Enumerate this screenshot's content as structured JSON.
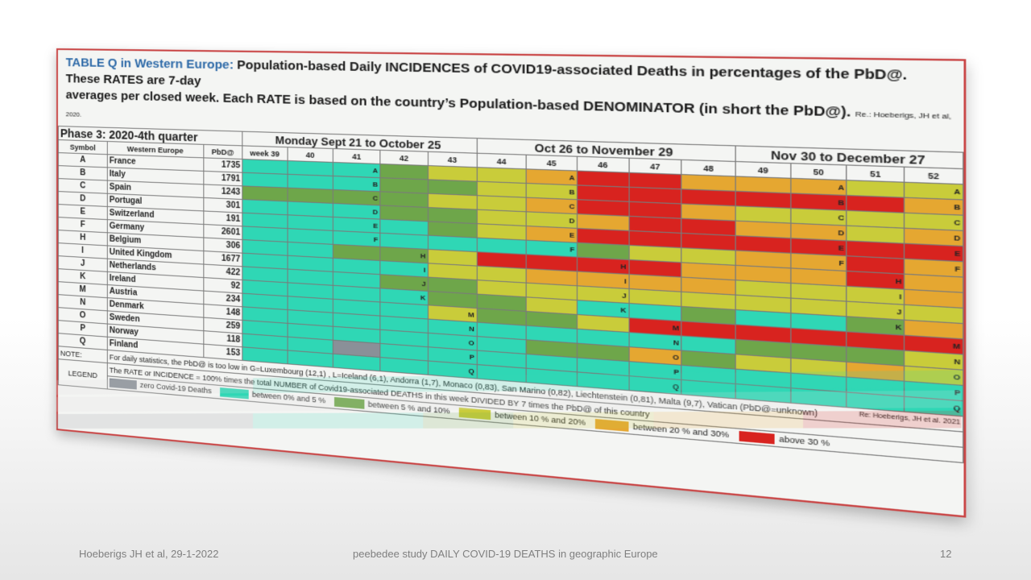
{
  "title": {
    "head": "TABLE Q in Western Europe:",
    "line1_rest": "Population-based Daily INCIDENCES of COVID19-associated Deaths in percentages of the PbD@. These RATES are 7-day",
    "line2": "averages per closed week. Each RATE is based on the country’s Population-based DENOMINATOR (in short the PbD@).",
    "ref": "Re.: Hoeberigs, JH et al, 2020."
  },
  "table": {
    "phase_label": "Phase 3:",
    "phase_quarter": "2020-4th quarter",
    "periods": [
      "Monday Sept 21 to October 25",
      "Oct 26 to November 29",
      "Nov 30 to December 27"
    ],
    "headers": {
      "symbol": "Symbol",
      "region": "Western Europe",
      "pbd": "PbD@"
    },
    "weeks": [
      "week 39",
      "40",
      "41",
      "42",
      "43",
      "44",
      "45",
      "46",
      "47",
      "48",
      "49",
      "50",
      "51",
      "52"
    ],
    "rows": [
      {
        "symbol": "A",
        "country": "France",
        "pbd": "1735",
        "cells": [
          "t",
          "t",
          "t:A",
          "g",
          "y",
          "y",
          "o:A",
          "r",
          "r",
          "o",
          "o",
          "o:A",
          "y",
          "y:A"
        ]
      },
      {
        "symbol": "B",
        "country": "Italy",
        "pbd": "1791",
        "cells": [
          "t",
          "t",
          "t:B",
          "g",
          "g",
          "y",
          "y:B",
          "r",
          "r",
          "r",
          "r",
          "r:B",
          "r",
          "o:B"
        ]
      },
      {
        "symbol": "C",
        "country": "Spain",
        "pbd": "1243",
        "cells": [
          "g",
          "g",
          "g:C",
          "g",
          "y",
          "y",
          "o:C",
          "r",
          "r",
          "o",
          "y",
          "y:C",
          "y",
          "y:C"
        ]
      },
      {
        "symbol": "D",
        "country": "Portugal",
        "pbd": "301",
        "cells": [
          "t",
          "t",
          "t:D",
          "g",
          "g",
          "y",
          "y:D",
          "o",
          "r",
          "r",
          "o",
          "o:D",
          "y",
          "o:D"
        ]
      },
      {
        "symbol": "E",
        "country": "Switzerland",
        "pbd": "191",
        "cells": [
          "t",
          "t",
          "t:E",
          "t",
          "g",
          "y",
          "o:E",
          "r",
          "r",
          "r",
          "r",
          "r:E",
          "r",
          "r:E"
        ]
      },
      {
        "symbol": "F",
        "country": "Germany",
        "pbd": "2601",
        "cells": [
          "t",
          "t",
          "t:F",
          "t",
          "t",
          "t",
          "t:F",
          "g",
          "y",
          "y",
          "o",
          "o:F",
          "r",
          "o:F"
        ]
      },
      {
        "symbol": "H",
        "country": "Belgium",
        "pbd": "306",
        "cells": [
          "t",
          "t",
          "g",
          "g:H",
          "y",
          "r",
          "r",
          "r:H",
          "r",
          "o",
          "o",
          "o",
          "r:H",
          "o"
        ]
      },
      {
        "symbol": "I",
        "country": "United Kingdom",
        "pbd": "1677",
        "cells": [
          "t",
          "t",
          "t",
          "t:I",
          "y",
          "y",
          "o",
          "o:I",
          "o",
          "o",
          "y",
          "y",
          "y:I",
          "o"
        ]
      },
      {
        "symbol": "J",
        "country": "Netherlands",
        "pbd": "422",
        "cells": [
          "t",
          "t",
          "t",
          "g:J",
          "g",
          "y",
          "y",
          "y:J",
          "y",
          "y",
          "y",
          "y",
          "y:J",
          "y"
        ]
      },
      {
        "symbol": "K",
        "country": "Ireland",
        "pbd": "92",
        "cells": [
          "t",
          "t",
          "t",
          "t:K",
          "g",
          "g",
          "y",
          "t:K",
          "t",
          "g",
          "t",
          "t",
          "g:K",
          "o"
        ]
      },
      {
        "symbol": "M",
        "country": "Austria",
        "pbd": "234",
        "cells": [
          "t",
          "t",
          "t",
          "t",
          "y:M",
          "g",
          "g",
          "y",
          "r:M",
          "r",
          "r",
          "r",
          "r",
          "r:M"
        ]
      },
      {
        "symbol": "N",
        "country": "Denmark",
        "pbd": "148",
        "cells": [
          "t",
          "t",
          "t",
          "t",
          "t:N",
          "t",
          "t",
          "t",
          "t:N",
          "t",
          "g",
          "g",
          "g",
          "y:N"
        ]
      },
      {
        "symbol": "O",
        "country": "Sweden",
        "pbd": "259",
        "cells": [
          "t",
          "t",
          "t",
          "t",
          "t:O",
          "t",
          "g",
          "g",
          "o:O",
          "g",
          "y",
          "y",
          "o",
          "y:O"
        ]
      },
      {
        "symbol": "P",
        "country": "Norway",
        "pbd": "118",
        "cells": [
          "t",
          "t",
          "z",
          "t",
          "t:P",
          "t",
          "t",
          "t",
          "t:P",
          "t",
          "t",
          "t",
          "t",
          "t:P"
        ]
      },
      {
        "symbol": "Q",
        "country": "Finland",
        "pbd": "153",
        "cells": [
          "t",
          "t",
          "t",
          "t",
          "t:Q",
          "t",
          "t",
          "t",
          "t:Q",
          "t",
          "t",
          "t",
          "t",
          "t:Q"
        ]
      }
    ],
    "note_label": "NOTE:",
    "note_text": "For daily statistics, the PbD@ is too low in G=Luxembourg (12,1) , L=Iceland (6,1), Andorra (1,7), Monaco (0,83), San Marino (0,82), Liechtenstein (0,81), Malta (9,7), Vatican (PbD@=unknown)",
    "note_ref": "Re: Hoeberigs, JH et al. 2021",
    "legend_label": "LEGEND",
    "legend_text": "The RATE or INCIDENCE = 100% times the total NUMBER of Covid19-associated DEATHS in this week DIVIDED BY 7 times the PbD@ of this country",
    "legend_items": [
      {
        "label": "zero Covid-19 Deaths",
        "color": "#8a9098"
      },
      {
        "label": "between 0% and 5 %",
        "color": "#2fd7b5"
      },
      {
        "label": "between 5 % and 10%",
        "color": "#6ea64a"
      },
      {
        "label": "between 10 % and 20%",
        "color": "#c9cc3a"
      },
      {
        "label": "between 20 % and 30%",
        "color": "#e5a731"
      },
      {
        "label": "above 30 %",
        "color": "#d8231f"
      }
    ],
    "colors": {
      "t": "#2fd7b5",
      "g": "#6ea64a",
      "y": "#c9cc3a",
      "o": "#e5a731",
      "r": "#d8231f",
      "z": "#8a9098"
    }
  },
  "footer": {
    "left": "Hoeberigs JH et al, 29-1-2022",
    "center": "peebedee study DAILY COVID-19 DEATHS in geographic Europe",
    "page_number": "12"
  }
}
